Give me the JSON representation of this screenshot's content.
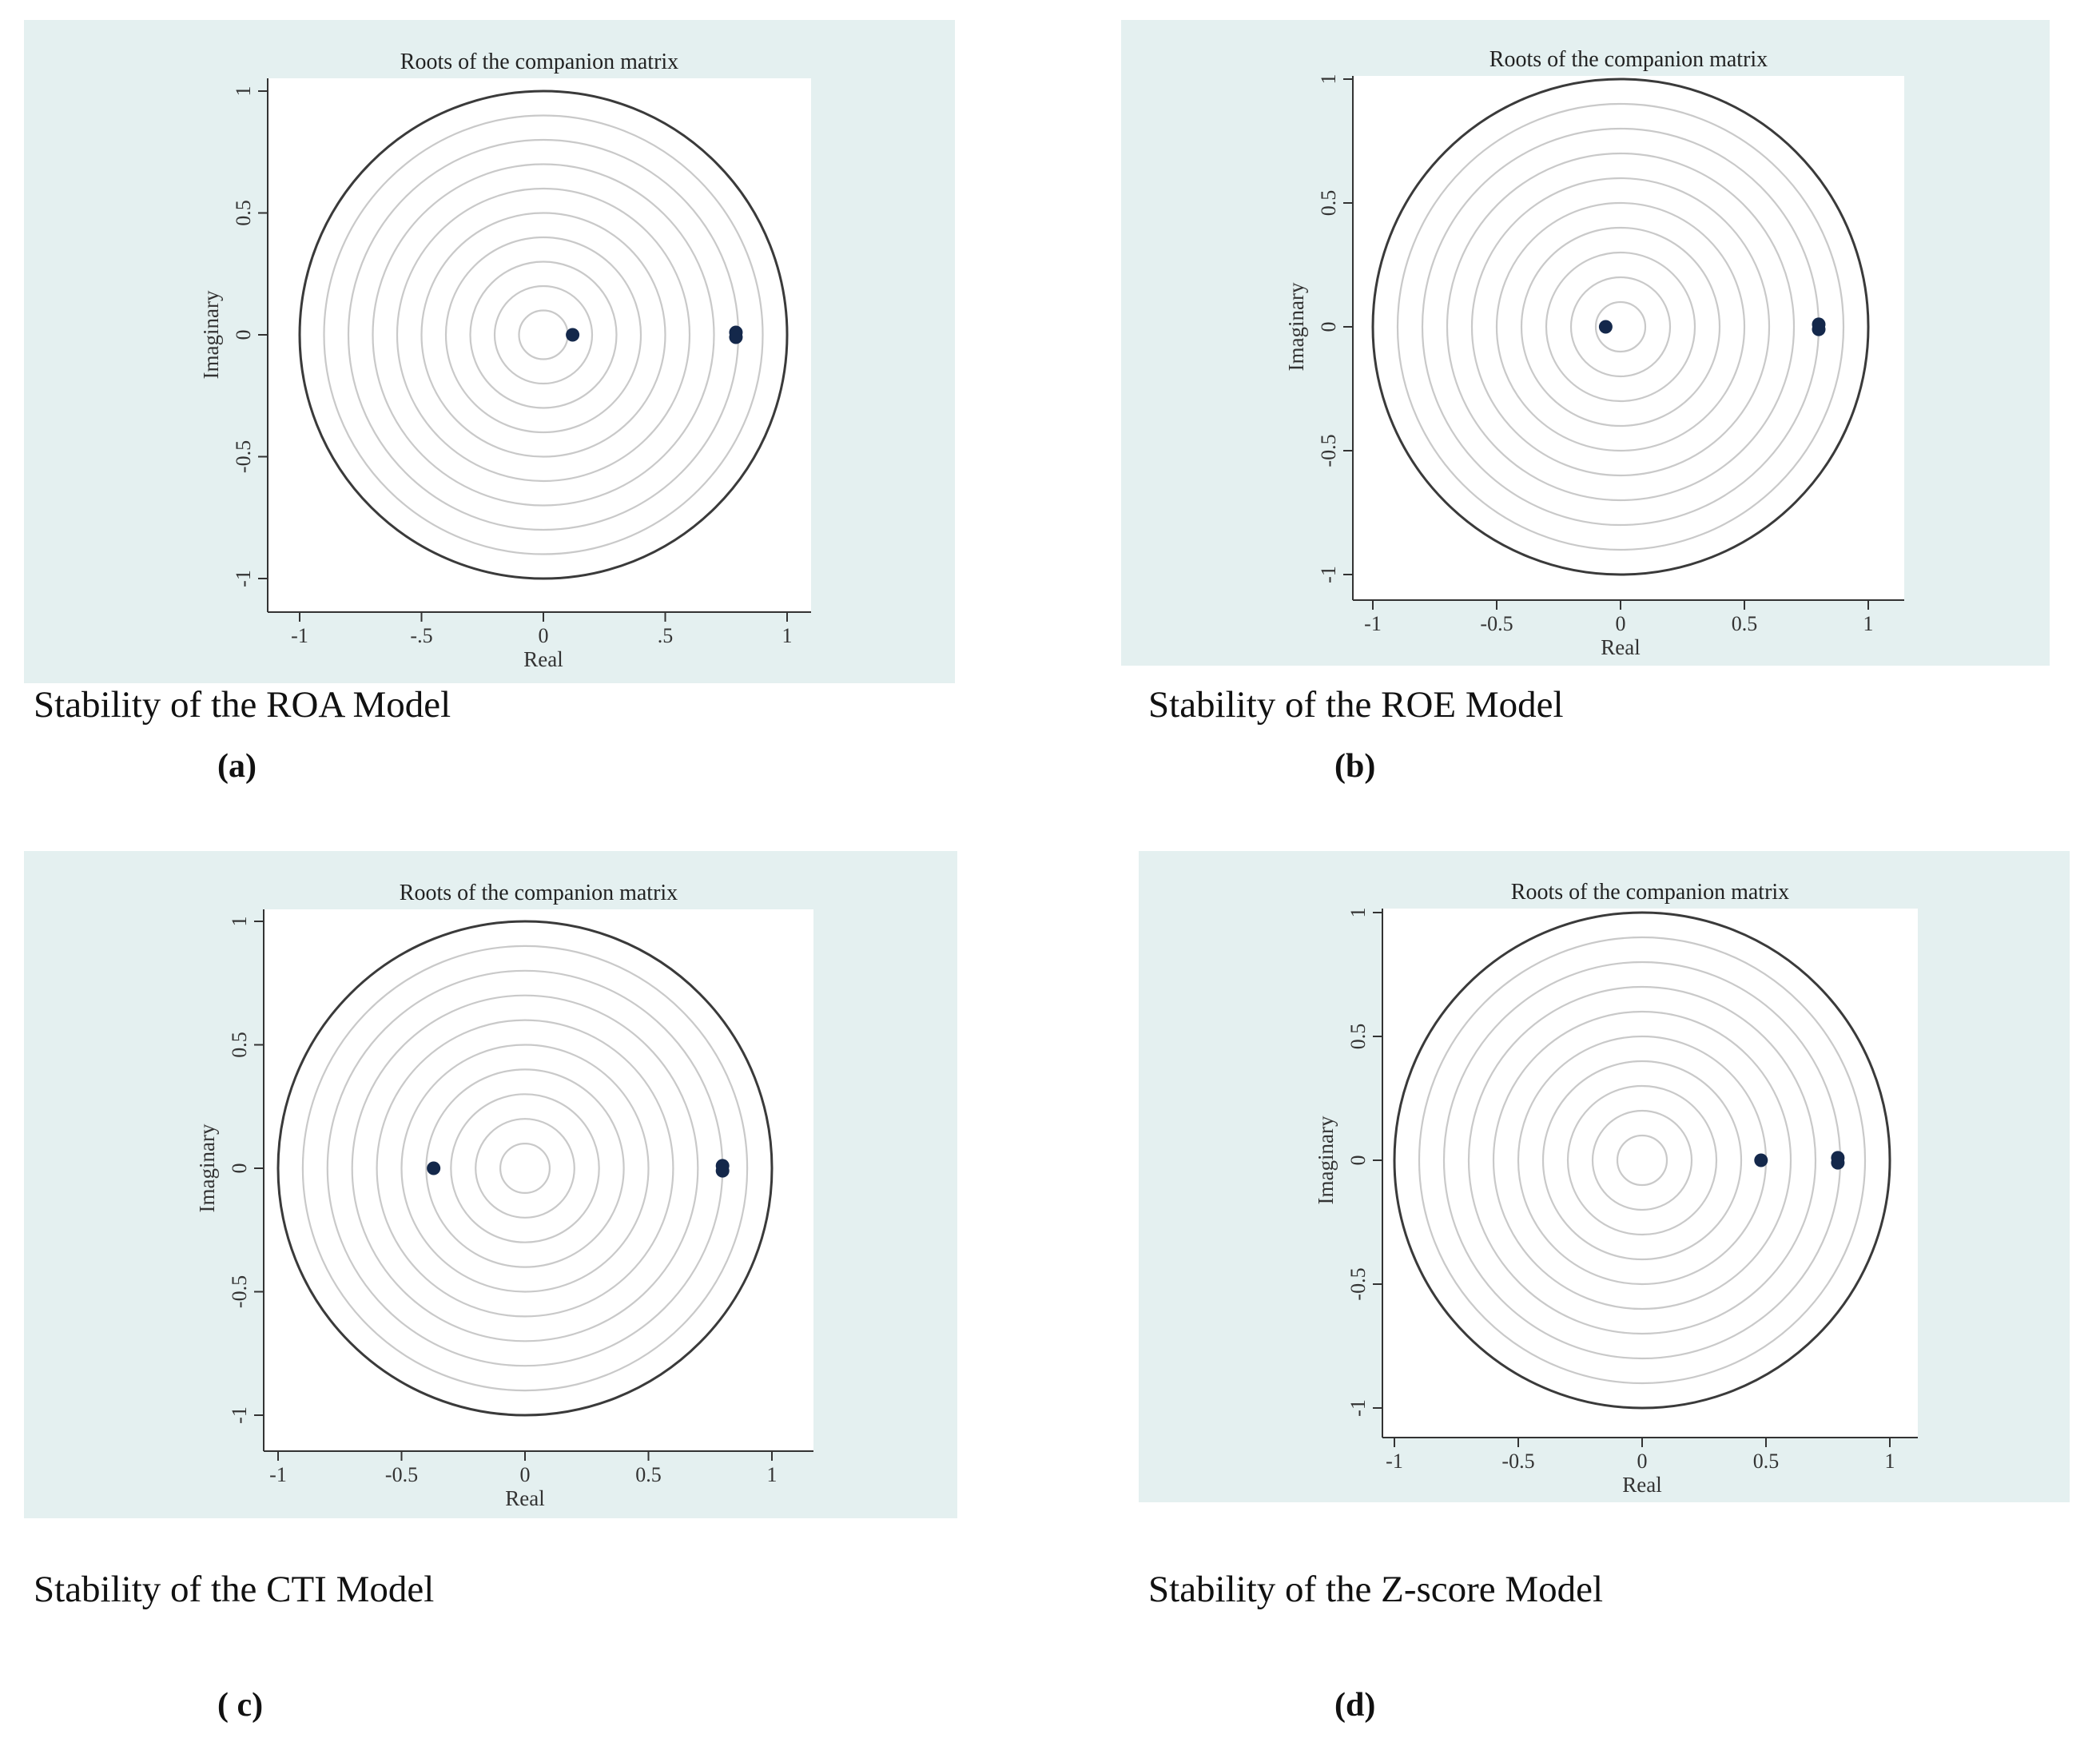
{
  "colors": {
    "panel_background": "#e4f0f0",
    "plot_background": "#ffffff",
    "unit_circle": "#3a3a3a",
    "grid_circles": "#c9c9c9",
    "points": "#14284b"
  },
  "chart_data": [
    {
      "id": "a",
      "type": "scatter",
      "title": "Roots of the companion matrix",
      "xlabel": "Real",
      "ylabel": "Imaginary",
      "xlim": [
        -1,
        1
      ],
      "ylim": [
        -1,
        1
      ],
      "xtick_labels": [
        "-1",
        "-.5",
        "0",
        ".5",
        "1"
      ],
      "ytick_labels": [
        "-1",
        "-0.5",
        "0",
        "0.5",
        "1"
      ],
      "unit_circle": true,
      "grid": "concentric circles",
      "points": [
        {
          "x": 0.12,
          "y": 0.0
        },
        {
          "x": 0.79,
          "y": 0.01
        },
        {
          "x": 0.79,
          "y": -0.01
        }
      ],
      "caption": "Stability of the ROA Model",
      "label": "(a)"
    },
    {
      "id": "b",
      "type": "scatter",
      "title": "Roots of the companion matrix",
      "xlabel": "Real",
      "ylabel": "Imaginary",
      "xlim": [
        -1,
        1
      ],
      "ylim": [
        -1,
        1
      ],
      "xtick_labels": [
        "-1",
        "-0.5",
        "0",
        "0.5",
        "1"
      ],
      "ytick_labels": [
        "-1",
        "-0.5",
        "0",
        "0.5",
        "1"
      ],
      "unit_circle": true,
      "grid": "concentric circles",
      "points": [
        {
          "x": -0.06,
          "y": 0.0
        },
        {
          "x": 0.8,
          "y": 0.01
        },
        {
          "x": 0.8,
          "y": -0.01
        }
      ],
      "caption": "Stability of the ROE Model",
      "label": "(b)"
    },
    {
      "id": "c",
      "type": "scatter",
      "title": "Roots of the companion matrix",
      "xlabel": "Real",
      "ylabel": "Imaginary",
      "xlim": [
        -1,
        1
      ],
      "ylim": [
        -1,
        1
      ],
      "xtick_labels": [
        "-1",
        "-0.5",
        "0",
        "0.5",
        "1"
      ],
      "ytick_labels": [
        "-1",
        "-0.5",
        "0",
        "0.5",
        "1"
      ],
      "unit_circle": true,
      "grid": "concentric circles",
      "points": [
        {
          "x": -0.37,
          "y": 0.0
        },
        {
          "x": 0.8,
          "y": 0.01
        },
        {
          "x": 0.8,
          "y": -0.01
        }
      ],
      "caption": "Stability of the CTI Model",
      "label": "( c)"
    },
    {
      "id": "d",
      "type": "scatter",
      "title": "Roots of the companion matrix",
      "xlabel": "Real",
      "ylabel": "Imaginary",
      "xlim": [
        -1,
        1
      ],
      "ylim": [
        -1,
        1
      ],
      "xtick_labels": [
        "-1",
        "-0.5",
        "0",
        "0.5",
        "1"
      ],
      "ytick_labels": [
        "-1",
        "-0.5",
        "0",
        "0.5",
        "1"
      ],
      "unit_circle": true,
      "grid": "concentric circles",
      "points": [
        {
          "x": 0.48,
          "y": 0.0
        },
        {
          "x": 0.79,
          "y": 0.01
        },
        {
          "x": 0.79,
          "y": -0.01
        }
      ],
      "caption": "Stability of the Z-score Model",
      "label": "(d)"
    }
  ]
}
